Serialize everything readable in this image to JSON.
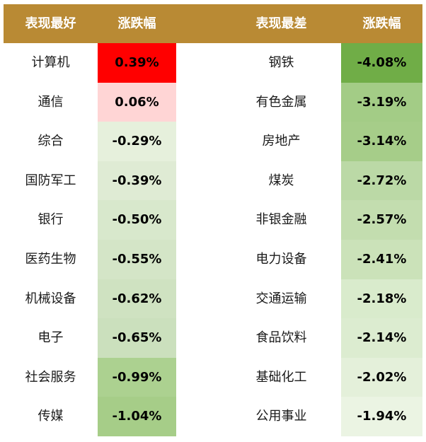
{
  "header": {
    "best_label": "表现最好",
    "best_change_label": "涨跌幅",
    "worst_label": "表现最差",
    "worst_change_label": "涨跌幅"
  },
  "best": [
    {
      "name": "计算机",
      "change": "0.39%",
      "color": "#ff0000"
    },
    {
      "name": "通信",
      "change": "0.06%",
      "color": "#ffd5d5"
    },
    {
      "name": "综合",
      "change": "-0.29%",
      "color": "#e6f0dc"
    },
    {
      "name": "国防军工",
      "change": "-0.39%",
      "color": "#dfebd4"
    },
    {
      "name": "银行",
      "change": "-0.50%",
      "color": "#d8e8cc"
    },
    {
      "name": "医药生物",
      "change": "-0.55%",
      "color": "#d4e5c7"
    },
    {
      "name": "机械设备",
      "change": "-0.62%",
      "color": "#cfe2c1"
    },
    {
      "name": "电子",
      "change": "-0.65%",
      "color": "#cbe0bd"
    },
    {
      "name": "社会服务",
      "change": "-0.99%",
      "color": "#acd190"
    },
    {
      "name": "传媒",
      "change": "-1.04%",
      "color": "#a6cd88"
    }
  ],
  "worst": [
    {
      "name": "钢铁",
      "change": "-4.08%",
      "color": "#70ad47"
    },
    {
      "name": "有色金属",
      "change": "-3.19%",
      "color": "#a3cc86"
    },
    {
      "name": "房地产",
      "change": "-3.14%",
      "color": "#a6cd89"
    },
    {
      "name": "煤炭",
      "change": "-2.72%",
      "color": "#bbd9a6"
    },
    {
      "name": "非银金融",
      "change": "-2.57%",
      "color": "#c3ddaf"
    },
    {
      "name": "电力设备",
      "change": "-2.41%",
      "color": "#cbe2b9"
    },
    {
      "name": "交通运输",
      "change": "-2.18%",
      "color": "#d9ebcc"
    },
    {
      "name": "食品饮料",
      "change": "-2.14%",
      "color": "#dcecd0"
    },
    {
      "name": "基础化工",
      "change": "-2.02%",
      "color": "#e4f0da"
    },
    {
      "name": "公用事业",
      "change": "-1.94%",
      "color": "#ebf4e3"
    }
  ]
}
